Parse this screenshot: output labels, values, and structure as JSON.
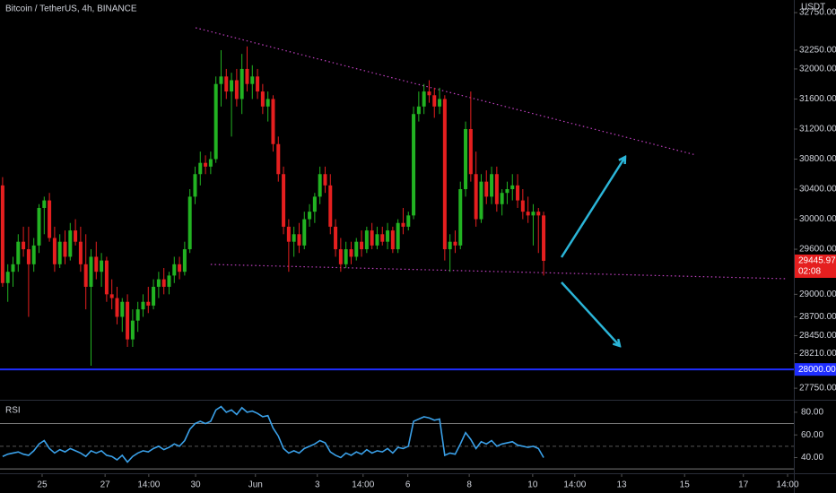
{
  "chart_data": {
    "type": "candlestick",
    "title": "Bitcoin / TetherUS, 4h, BINANCE",
    "currency": "USDT",
    "up_color": "#22b322",
    "down_color": "#e51f1f",
    "candles": [
      [
        30450,
        30560,
        29100,
        29150
      ],
      [
        29150,
        29400,
        28900,
        29300
      ],
      [
        29300,
        29500,
        29100,
        29400
      ],
      [
        29400,
        29800,
        29300,
        29700
      ],
      [
        29700,
        29900,
        29500,
        29600
      ],
      [
        29600,
        29900,
        28700,
        29400
      ],
      [
        29400,
        29750,
        29300,
        29650
      ],
      [
        29650,
        30200,
        29550,
        30150
      ],
      [
        30150,
        30300,
        29800,
        30250
      ],
      [
        30250,
        30350,
        29700,
        29750
      ],
      [
        29750,
        29900,
        29300,
        29400
      ],
      [
        29400,
        29800,
        29350,
        29700
      ],
      [
        29700,
        29850,
        29400,
        29500
      ],
      [
        29500,
        29950,
        29450,
        29850
      ],
      [
        29850,
        30000,
        29650,
        29700
      ],
      [
        29700,
        29900,
        29300,
        29400
      ],
      [
        29400,
        29800,
        28800,
        29100
      ],
      [
        29100,
        29600,
        28050,
        29500
      ],
      [
        29500,
        29700,
        29200,
        29300
      ],
      [
        29300,
        29550,
        29100,
        29450
      ],
      [
        29450,
        29500,
        28900,
        29000
      ],
      [
        29000,
        29200,
        28800,
        28950
      ],
      [
        28950,
        29100,
        28600,
        28700
      ],
      [
        28700,
        28950,
        28500,
        28900
      ],
      [
        28900,
        29000,
        28300,
        28400
      ],
      [
        28400,
        28800,
        28300,
        28650
      ],
      [
        28650,
        28900,
        28500,
        28800
      ],
      [
        28800,
        29000,
        28700,
        28900
      ],
      [
        28900,
        29100,
        28750,
        28850
      ],
      [
        28850,
        29200,
        28800,
        29100
      ],
      [
        29100,
        29300,
        28950,
        29200
      ],
      [
        29200,
        29350,
        29000,
        29100
      ],
      [
        29100,
        29300,
        29000,
        29250
      ],
      [
        29250,
        29500,
        29150,
        29400
      ],
      [
        29400,
        29500,
        29200,
        29300
      ],
      [
        29300,
        29700,
        29250,
        29600
      ],
      [
        29600,
        30400,
        29550,
        30300
      ],
      [
        30300,
        30700,
        30200,
        30600
      ],
      [
        30600,
        30900,
        30450,
        30750
      ],
      [
        30750,
        30850,
        30600,
        30700
      ],
      [
        30700,
        30900,
        30600,
        30800
      ],
      [
        30800,
        31900,
        30750,
        31800
      ],
      [
        31800,
        32250,
        31500,
        31900
      ],
      [
        31900,
        32000,
        31600,
        31700
      ],
      [
        31700,
        31950,
        31100,
        31850
      ],
      [
        31850,
        32000,
        31500,
        31600
      ],
      [
        31600,
        32200,
        31400,
        32000
      ],
      [
        32000,
        32300,
        31700,
        31800
      ],
      [
        31800,
        32050,
        31600,
        31900
      ],
      [
        31900,
        32000,
        31600,
        31700
      ],
      [
        31700,
        31800,
        31400,
        31500
      ],
      [
        31500,
        31700,
        31300,
        31600
      ],
      [
        31600,
        31650,
        30900,
        31000
      ],
      [
        31000,
        31100,
        30500,
        30600
      ],
      [
        30600,
        30700,
        29800,
        29900
      ],
      [
        29900,
        30000,
        29300,
        29700
      ],
      [
        29700,
        29900,
        29500,
        29800
      ],
      [
        29800,
        29950,
        29550,
        29650
      ],
      [
        29650,
        30100,
        29600,
        30000
      ],
      [
        30000,
        30200,
        29900,
        30100
      ],
      [
        30100,
        30350,
        29950,
        30300
      ],
      [
        30300,
        30700,
        30200,
        30600
      ],
      [
        30600,
        30700,
        30350,
        30450
      ],
      [
        30450,
        30600,
        29800,
        29900
      ],
      [
        29900,
        30000,
        29500,
        29600
      ],
      [
        29600,
        29750,
        29300,
        29400
      ],
      [
        29400,
        29700,
        29350,
        29600
      ],
      [
        29600,
        29700,
        29400,
        29500
      ],
      [
        29500,
        29750,
        29450,
        29700
      ],
      [
        29700,
        29850,
        29500,
        29600
      ],
      [
        29600,
        29900,
        29550,
        29850
      ],
      [
        29850,
        29950,
        29600,
        29650
      ],
      [
        29650,
        29900,
        29600,
        29800
      ],
      [
        29800,
        29900,
        29650,
        29700
      ],
      [
        29700,
        29950,
        29600,
        29850
      ],
      [
        29850,
        29900,
        29550,
        29600
      ],
      [
        29600,
        30000,
        29550,
        29950
      ],
      [
        29950,
        30150,
        29800,
        29900
      ],
      [
        29900,
        30100,
        29850,
        30050
      ],
      [
        30050,
        31500,
        30000,
        31400
      ],
      [
        31400,
        31700,
        31300,
        31500
      ],
      [
        31500,
        31800,
        31400,
        31700
      ],
      [
        31700,
        31850,
        31550,
        31650
      ],
      [
        31650,
        31750,
        31350,
        31500
      ],
      [
        31500,
        31750,
        31400,
        31600
      ],
      [
        31600,
        31650,
        29450,
        29600
      ],
      [
        29600,
        29800,
        29300,
        29700
      ],
      [
        29700,
        29850,
        29550,
        29650
      ],
      [
        29650,
        30500,
        29600,
        30400
      ],
      [
        30400,
        31300,
        30300,
        31200
      ],
      [
        31200,
        31700,
        30500,
        30600
      ],
      [
        30600,
        30900,
        29900,
        30000
      ],
      [
        30000,
        30600,
        29950,
        30500
      ],
      [
        30500,
        30650,
        30200,
        30300
      ],
      [
        30300,
        30700,
        30200,
        30600
      ],
      [
        30600,
        30700,
        30100,
        30200
      ],
      [
        30200,
        30400,
        30050,
        30350
      ],
      [
        30350,
        30500,
        30200,
        30400
      ],
      [
        30400,
        30600,
        30250,
        30450
      ],
      [
        30450,
        30600,
        30150,
        30250
      ],
      [
        30250,
        30400,
        30000,
        30100
      ],
      [
        30100,
        30300,
        29950,
        30050
      ],
      [
        30050,
        30200,
        29650,
        30100
      ],
      [
        30100,
        30150,
        29550,
        30050
      ],
      [
        30050,
        30100,
        29250,
        29445.97
      ]
    ],
    "xlim": [
      -0.5,
      152.1
    ],
    "xticks": [
      {
        "value": 7.6,
        "label": "25"
      },
      {
        "value": 19.7,
        "label": "27"
      },
      {
        "value": 28.1,
        "label": "14:00"
      },
      {
        "value": 37.1,
        "label": "30"
      },
      {
        "value": 48.6,
        "label": "Jun"
      },
      {
        "value": 60.5,
        "label": "3"
      },
      {
        "value": 69.3,
        "label": "14:00"
      },
      {
        "value": 77.9,
        "label": "6"
      },
      {
        "value": 89.7,
        "label": "8"
      },
      {
        "value": 101.9,
        "label": "10"
      },
      {
        "value": 110,
        "label": "14:00"
      },
      {
        "value": 119,
        "label": "13"
      },
      {
        "value": 131.1,
        "label": "15"
      },
      {
        "value": 142.4,
        "label": "17"
      },
      {
        "value": 150.9,
        "label": "14:00"
      }
    ],
    "ylim": [
      27608,
      32918
    ],
    "yticks": [
      {
        "value": 32750,
        "label": "32750.00"
      },
      {
        "value": 32250,
        "label": "32250.00"
      },
      {
        "value": 32000,
        "label": "32000.00"
      },
      {
        "value": 31600,
        "label": "31600.00"
      },
      {
        "value": 31200,
        "label": "31200.00"
      },
      {
        "value": 30800,
        "label": "30800.00"
      },
      {
        "value": 30400,
        "label": "30400.00"
      },
      {
        "value": 30000,
        "label": "30000.00"
      },
      {
        "value": 29600,
        "label": "29600.00"
      },
      {
        "value": 29000,
        "label": "29000.00"
      },
      {
        "value": 28700,
        "label": "28700.00"
      },
      {
        "value": 28450,
        "label": "28450.00"
      },
      {
        "value": 28210,
        "label": "28210.00"
      },
      {
        "value": 27750,
        "label": "27750.00"
      }
    ],
    "hline": {
      "value": 28000,
      "label": "28000.00",
      "color": "#1f2eff"
    },
    "last_price": 29445.97,
    "countdown": "02:08",
    "trendlines": [
      {
        "color": "#c040c0",
        "points": [
          [
            37.1,
            32548
          ],
          [
            133.3,
            30854
          ]
        ]
      },
      {
        "color": "#c040c0",
        "points": [
          [
            40.0,
            29398
          ],
          [
            150.9,
            29207
          ]
        ]
      }
    ],
    "rsi": {
      "title": "RSI",
      "color": "#3aa0e8",
      "ylim": [
        29,
        90.2
      ],
      "yticks": [
        {
          "value": 80,
          "label": "80.00"
        },
        {
          "value": 60,
          "label": "60.00"
        },
        {
          "value": 40,
          "label": "40.00"
        }
      ],
      "bands": [
        70,
        50,
        30
      ],
      "values": [
        41,
        43,
        44,
        45,
        43,
        42,
        46,
        52,
        55,
        48,
        44,
        47,
        45,
        48,
        46,
        44,
        41,
        46,
        44,
        46,
        42,
        41,
        38,
        42,
        36,
        41,
        44,
        46,
        45,
        48,
        50,
        47,
        49,
        52,
        50,
        55,
        65,
        70,
        72,
        70,
        72,
        82,
        85,
        80,
        82,
        78,
        84,
        80,
        81,
        79,
        76,
        77,
        66,
        59,
        48,
        44,
        46,
        44,
        48,
        50,
        52,
        55,
        53,
        45,
        42,
        40,
        44,
        42,
        45,
        43,
        47,
        44,
        46,
        45,
        48,
        44,
        49,
        48,
        50,
        72,
        74,
        76,
        75,
        73,
        74,
        42,
        44,
        43,
        52,
        62,
        56,
        48,
        54,
        52,
        55,
        50,
        52,
        53,
        54,
        51,
        50,
        49,
        50,
        48,
        40
      ]
    }
  }
}
